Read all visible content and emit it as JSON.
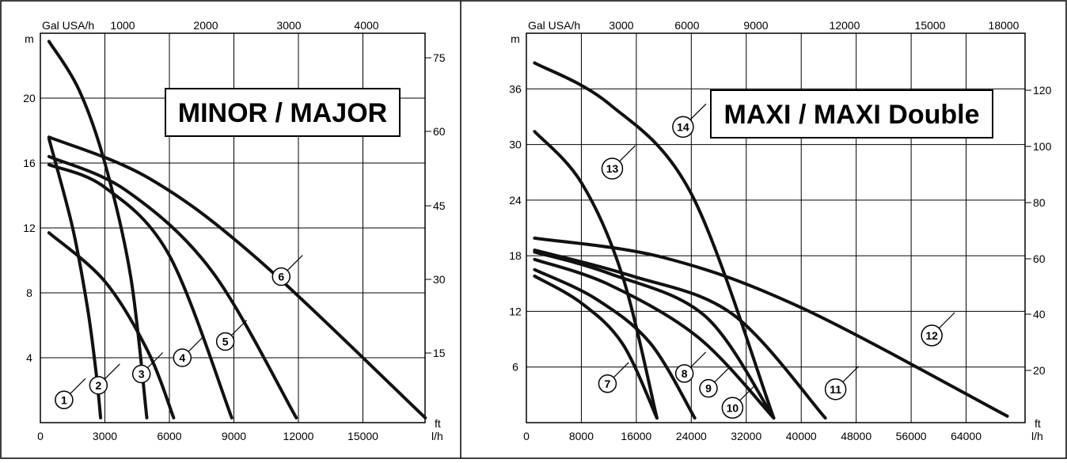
{
  "chart_data": [
    {
      "type": "line",
      "title": "MINOR / MAJOR",
      "xlabel": "l/h",
      "x_top_label": "Gal USA/h",
      "ylabel": "m",
      "y_right_label": "ft",
      "xlim": [
        0,
        18000
      ],
      "ylim": [
        0,
        24
      ],
      "x_ticks": [
        0,
        3000,
        6000,
        9000,
        12000,
        15000
      ],
      "x_top_ticks": [
        1000,
        2000,
        3000,
        4000
      ],
      "y_ticks": [
        4,
        8,
        12,
        16,
        20
      ],
      "y_right_ticks": [
        15,
        30,
        45,
        60,
        75
      ],
      "grid": true,
      "series": [
        {
          "name": "1",
          "points": [
            [
              400,
              17.5
            ],
            [
              1500,
              12
            ],
            [
              2200,
              7
            ],
            [
              2600,
              3
            ],
            [
              2800,
              0.3
            ]
          ]
        },
        {
          "name": "2",
          "points": [
            [
              400,
              23.5
            ],
            [
              1800,
              20.5
            ],
            [
              3000,
              16
            ],
            [
              4200,
              9
            ],
            [
              4950,
              0.3
            ]
          ]
        },
        {
          "name": "3",
          "points": [
            [
              400,
              11.7
            ],
            [
              3000,
              8.7
            ],
            [
              5000,
              4.4
            ],
            [
              6200,
              0.3
            ]
          ]
        },
        {
          "name": "4",
          "points": [
            [
              400,
              15.9
            ],
            [
              3000,
              14.5
            ],
            [
              6000,
              10.3
            ],
            [
              8900,
              0.3
            ]
          ]
        },
        {
          "name": "5",
          "points": [
            [
              400,
              16.4
            ],
            [
              4000,
              14.3
            ],
            [
              8000,
              9.3
            ],
            [
              11900,
              0.3
            ]
          ]
        },
        {
          "name": "6",
          "points": [
            [
              400,
              17.6
            ],
            [
              5000,
              15.1
            ],
            [
              10000,
              10.2
            ],
            [
              17900,
              0.3
            ]
          ]
        }
      ],
      "badges": [
        {
          "label": "1",
          "x": 1100,
          "y": 1.4
        },
        {
          "label": "2",
          "x": 2700,
          "y": 2.3
        },
        {
          "label": "3",
          "x": 4700,
          "y": 3.0
        },
        {
          "label": "4",
          "x": 6600,
          "y": 4.0
        },
        {
          "label": "5",
          "x": 8600,
          "y": 5.0
        },
        {
          "label": "6",
          "x": 11200,
          "y": 9.0
        }
      ]
    },
    {
      "type": "line",
      "title": "MAXI / MAXI Double",
      "xlabel": "l/h",
      "x_top_label": "Gal USA/h",
      "ylabel": "m",
      "y_right_label": "ft",
      "xlim": [
        0,
        72000
      ],
      "ylim": [
        0,
        42
      ],
      "x_ticks": [
        0,
        8000,
        16000,
        24000,
        32000,
        40000,
        48000,
        56000,
        64000
      ],
      "x_top_ticks": [
        3000,
        6000,
        9000,
        12000,
        15000,
        18000
      ],
      "y_ticks": [
        6,
        12,
        18,
        24,
        30,
        36
      ],
      "y_right_ticks": [
        20,
        40,
        60,
        80,
        100,
        120
      ],
      "grid": true,
      "series": [
        {
          "name": "7",
          "points": [
            [
              1200,
              15.8
            ],
            [
              8000,
              12.9
            ],
            [
              14000,
              8.5
            ],
            [
              19000,
              0.5
            ]
          ]
        },
        {
          "name": "8",
          "points": [
            [
              1200,
              16.5
            ],
            [
              10000,
              13.4
            ],
            [
              18000,
              8.6
            ],
            [
              24500,
              0.5
            ]
          ]
        },
        {
          "name": "9",
          "points": [
            [
              1200,
              17.6
            ],
            [
              12000,
              14.9
            ],
            [
              25000,
              9.2
            ],
            [
              36000,
              0.5
            ]
          ]
        },
        {
          "name": "10",
          "points": [
            [
              1200,
              18.4
            ],
            [
              12000,
              16.1
            ],
            [
              26000,
              11.5
            ],
            [
              36000,
              0.5
            ]
          ]
        },
        {
          "name": "11",
          "points": [
            [
              1200,
              18.6
            ],
            [
              15000,
              15.9
            ],
            [
              30000,
              11.7
            ],
            [
              43500,
              0.5
            ]
          ]
        },
        {
          "name": "12",
          "points": [
            [
              1200,
              19.9
            ],
            [
              20000,
              17.8
            ],
            [
              40000,
              12.4
            ],
            [
              70000,
              0.7
            ]
          ]
        },
        {
          "name": "13",
          "points": [
            [
              1200,
              31.4
            ],
            [
              8000,
              25.9
            ],
            [
              14000,
              15.8
            ],
            [
              19000,
              0.5
            ]
          ]
        },
        {
          "name": "14",
          "points": [
            [
              1200,
              38.8
            ],
            [
              12000,
              34.4
            ],
            [
              24000,
              24.7
            ],
            [
              36000,
              0.5
            ]
          ]
        }
      ],
      "badges": [
        {
          "label": "7",
          "x": 11800,
          "y": 4.2
        },
        {
          "label": "8",
          "x": 23000,
          "y": 5.3
        },
        {
          "label": "9",
          "x": 26500,
          "y": 3.7
        },
        {
          "label": "10",
          "x": 30000,
          "y": 1.6
        },
        {
          "label": "11",
          "x": 45000,
          "y": 3.6
        },
        {
          "label": "12",
          "x": 59000,
          "y": 9.4
        },
        {
          "label": "13",
          "x": 12500,
          "y": 27.4
        },
        {
          "label": "14",
          "x": 22800,
          "y": 31.9
        }
      ]
    }
  ]
}
